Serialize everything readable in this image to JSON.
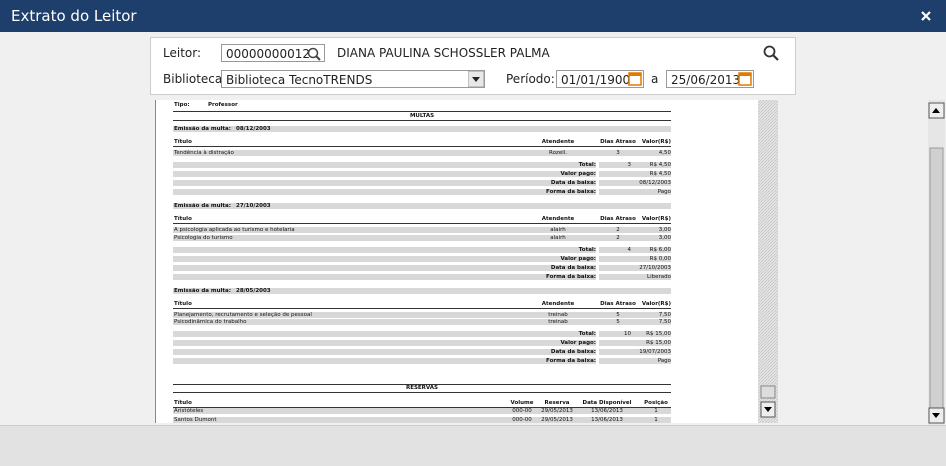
{
  "header": {
    "title": "Extrato do Leitor"
  },
  "form": {
    "leitor_label": "Leitor:",
    "leitor_code": "00000000012",
    "leitor_name": "DIANA PAULINA SCHOSSLER PALMA",
    "biblioteca_label": "Biblioteca:",
    "biblioteca": "Biblioteca TecnoTRENDS",
    "periodo_label": "Período:",
    "date_from": "01/01/1900",
    "date_sep": "a",
    "date_to": "25/06/2013"
  },
  "report": {
    "tipo_label": "Tipo:",
    "tipo": "Professor",
    "multas_title": "MULTAS",
    "fines": [
      {
        "emission_label": "Emissão da multa:",
        "emission": "08/12/2003",
        "columns": [
          "Título",
          "Atendente",
          "Dias Atraso",
          "Valor(R$)"
        ],
        "rows": [
          [
            "Tendência à distração",
            "Rozeli.",
            "3",
            "4,50"
          ]
        ],
        "total_label": "Total:",
        "total_days": "3",
        "total_value": "R$ 4,50",
        "paid_label": "Valor pago:",
        "paid": "R$ 4,50",
        "date_label": "Data da baixa:",
        "date": "08/12/2003",
        "form_label": "Forma da baixa:",
        "form": "Pago"
      },
      {
        "emission_label": "Emissão da multa:",
        "emission": "27/10/2003",
        "columns": [
          "Título",
          "Atendente",
          "Dias Atraso",
          "Valor(R$)"
        ],
        "rows": [
          [
            "A psicologia aplicada ao turismo e hotelaria",
            "alairh",
            "2",
            "3,00"
          ],
          [
            "Psicologia do turismo",
            "alairh",
            "2",
            "3,00"
          ]
        ],
        "total_label": "Total:",
        "total_days": "4",
        "total_value": "R$ 6,00",
        "paid_label": "Valor pago:",
        "paid": "R$ 0,00",
        "date_label": "Data da baixa:",
        "date": "27/10/2003",
        "form_label": "Forma da baixa:",
        "form": "Liberado"
      },
      {
        "emission_label": "Emissão da multa:",
        "emission": "28/05/2003",
        "columns": [
          "Título",
          "Atendente",
          "Dias Atraso",
          "Valor(R$)"
        ],
        "rows": [
          [
            "Planejamento, recrutamento e seleção de pessoal",
            "treinab",
            "5",
            "7,50"
          ],
          [
            "Psicodinâmica do trabalho",
            "treinab",
            "5",
            "7,50"
          ]
        ],
        "total_label": "Total:",
        "total_days": "10",
        "total_value": "R$ 15,00",
        "paid_label": "Valor pago:",
        "paid": "R$ 15,00",
        "date_label": "Data da baixa:",
        "date": "19/07/2003",
        "form_label": "Forma da baixa:",
        "form": "Pago"
      }
    ],
    "reservas_title": "RESERVAS",
    "reservas": {
      "columns": [
        "Título",
        "Volume",
        "Reserva",
        "Data Disponível",
        "Posição"
      ],
      "rows": [
        [
          "Aristóteles",
          "000-00",
          "29/05/2013",
          "13/06/2013",
          "1"
        ],
        [
          "Santos Dumont",
          "000-00",
          "29/05/2013",
          "13/06/2013",
          "1"
        ]
      ]
    }
  }
}
